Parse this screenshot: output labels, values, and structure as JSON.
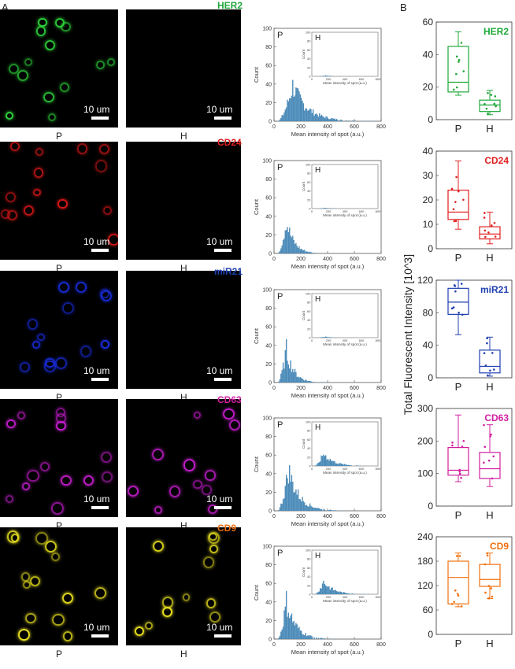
{
  "panel_a": "A",
  "panel_b": "B",
  "scale_label": "10 um",
  "label_p": "P",
  "label_h": "H",
  "hist_xlabel": "Mean intensity of spot (a.u.)",
  "hist_ylabel": "Count",
  "box_ylabel": "Total Fluorescent Intensity [10^3]",
  "rows": [
    {
      "marker": "HER2",
      "color": "#1fa83a",
      "cell": "#2fd13b",
      "h_cells": false
    },
    {
      "marker": "CD24",
      "color": "#e02020",
      "cell": "#d81818",
      "h_cells": false
    },
    {
      "marker": "miR21",
      "color": "#2040b0",
      "cell": "#1a2ee0",
      "h_cells": false
    },
    {
      "marker": "CD63",
      "color": "#d020a0",
      "cell": "#c81ed0",
      "h_cells": true
    },
    {
      "marker": "CD9",
      "color": "#f07010",
      "cell": "#e8e020",
      "h_cells": true
    }
  ],
  "chart_data": [
    {
      "type": "histogram",
      "marker": "HER2",
      "panel": "P",
      "xlim": [
        0,
        800
      ],
      "ylim": [
        0,
        100
      ],
      "xticks": [
        0,
        200,
        400,
        600,
        800
      ],
      "yticks": [
        0,
        20,
        40,
        60,
        80,
        100
      ],
      "inset": {
        "panel": "H",
        "xlim": [
          0,
          800
        ],
        "ylim": [
          0,
          100
        ],
        "xticks": [
          0,
          200,
          400,
          600,
          800
        ],
        "yticks": [
          0,
          20,
          40,
          60,
          80,
          100
        ]
      }
    },
    {
      "type": "histogram",
      "marker": "CD24",
      "panel": "P",
      "xlim": [
        0,
        800
      ],
      "ylim": [
        0,
        100
      ],
      "xticks": [
        0,
        200,
        400,
        600,
        800
      ],
      "yticks": [
        0,
        20,
        40,
        60,
        80,
        100
      ],
      "inset": {
        "panel": "H",
        "xlim": [
          0,
          800
        ],
        "ylim": [
          0,
          100
        ],
        "xticks": [
          0,
          200,
          400,
          600,
          800
        ],
        "yticks": [
          0,
          20,
          40,
          60,
          80,
          100
        ]
      }
    },
    {
      "type": "histogram",
      "marker": "miR21",
      "panel": "P",
      "xlim": [
        0,
        800
      ],
      "ylim": [
        0,
        100
      ],
      "xticks": [
        0,
        200,
        400,
        600,
        800
      ],
      "yticks": [
        0,
        20,
        40,
        60,
        80,
        100
      ],
      "inset": {
        "panel": "H",
        "xlim": [
          0,
          800
        ],
        "ylim": [
          0,
          100
        ],
        "xticks": [
          0,
          200,
          400,
          600,
          800
        ],
        "yticks": [
          0,
          20,
          40,
          60,
          80,
          100
        ]
      }
    },
    {
      "type": "histogram",
      "marker": "CD63",
      "panel": "P",
      "xlim": [
        0,
        800
      ],
      "ylim": [
        0,
        100
      ],
      "xticks": [
        0,
        200,
        400,
        600,
        800
      ],
      "yticks": [
        0,
        20,
        40,
        60,
        80,
        100
      ],
      "inset": {
        "panel": "H",
        "xlim": [
          0,
          800
        ],
        "ylim": [
          0,
          100
        ],
        "xticks": [
          0,
          200,
          400,
          600,
          800
        ],
        "yticks": [
          0,
          20,
          40,
          60,
          80,
          100
        ]
      }
    },
    {
      "type": "histogram",
      "marker": "CD9",
      "panel": "P",
      "xlim": [
        0,
        800
      ],
      "ylim": [
        0,
        100
      ],
      "xticks": [
        0,
        200,
        400,
        600,
        800
      ],
      "yticks": [
        0,
        20,
        40,
        60,
        80,
        100
      ],
      "inset": {
        "panel": "H",
        "xlim": [
          0,
          800
        ],
        "ylim": [
          0,
          100
        ],
        "xticks": [
          0,
          200,
          400,
          600,
          800
        ],
        "yticks": [
          0,
          20,
          40,
          60,
          80,
          100
        ]
      }
    },
    {
      "type": "box",
      "marker": "HER2",
      "categories": [
        "P",
        "H"
      ],
      "ylim": [
        0,
        60
      ],
      "yticks": [
        0,
        20,
        40,
        60
      ],
      "boxes": [
        {
          "q1": 17,
          "median": 23,
          "q3": 45,
          "whisker_low": 15,
          "whisker_high": 54
        },
        {
          "q1": 5,
          "median": 9,
          "q3": 12,
          "whisker_low": 3,
          "whisker_high": 18
        }
      ]
    },
    {
      "type": "box",
      "marker": "CD24",
      "categories": [
        "P",
        "H"
      ],
      "ylim": [
        0,
        40
      ],
      "yticks": [
        0,
        10,
        20,
        30,
        40
      ],
      "boxes": [
        {
          "q1": 12,
          "median": 15,
          "q3": 24,
          "whisker_low": 8,
          "whisker_high": 36
        },
        {
          "q1": 4,
          "median": 6,
          "q3": 9,
          "whisker_low": 2,
          "whisker_high": 15
        }
      ]
    },
    {
      "type": "box",
      "marker": "miR21",
      "categories": [
        "P",
        "H"
      ],
      "ylim": [
        0,
        120
      ],
      "yticks": [
        0,
        40,
        80,
        120
      ],
      "boxes": [
        {
          "q1": 78,
          "median": 93,
          "q3": 110,
          "whisker_low": 53,
          "whisker_high": 120
        },
        {
          "q1": 6,
          "median": 14,
          "q3": 34,
          "whisker_low": 2,
          "whisker_high": 50
        }
      ]
    },
    {
      "type": "box",
      "marker": "CD63",
      "categories": [
        "P",
        "H"
      ],
      "ylim": [
        0,
        300
      ],
      "yticks": [
        0,
        100,
        200,
        300
      ],
      "boxes": [
        {
          "q1": 95,
          "median": 110,
          "q3": 180,
          "whisker_low": 75,
          "whisker_high": 280
        },
        {
          "q1": 85,
          "median": 115,
          "q3": 165,
          "whisker_low": 60,
          "whisker_high": 250
        }
      ]
    },
    {
      "type": "box",
      "marker": "CD9",
      "categories": [
        "P",
        "H"
      ],
      "ylim": [
        0,
        240
      ],
      "yticks": [
        0,
        60,
        120,
        180,
        240
      ],
      "boxes": [
        {
          "q1": 75,
          "median": 140,
          "q3": 180,
          "whisker_low": 68,
          "whisker_high": 200
        },
        {
          "q1": 118,
          "median": 135,
          "q3": 172,
          "whisker_low": 88,
          "whisker_high": 200
        }
      ]
    }
  ]
}
